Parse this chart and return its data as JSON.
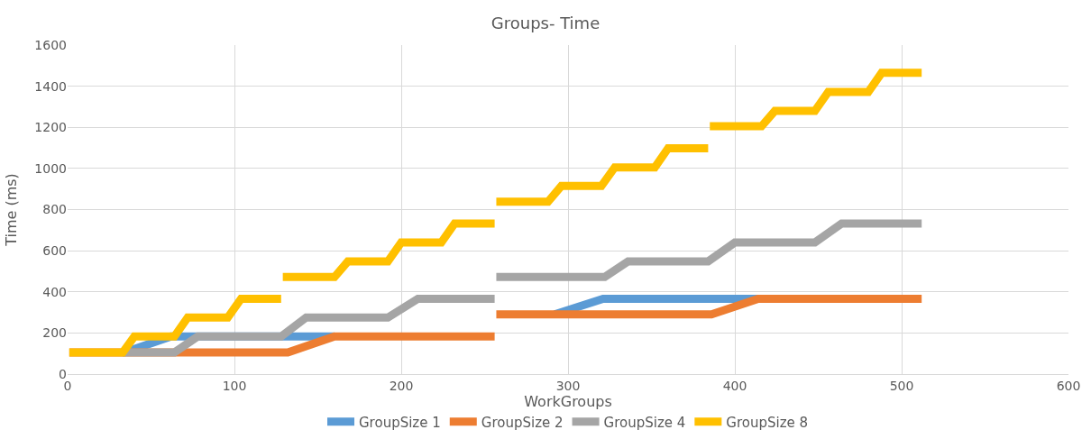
{
  "chart_data": {
    "type": "line",
    "title": "Groups- Time",
    "xlabel": "WorkGroups",
    "ylabel": "Time (ms)",
    "xlim": [
      0,
      600
    ],
    "xticks": [
      0,
      100,
      200,
      300,
      400,
      500,
      600
    ],
    "ylim": [
      0,
      1600
    ],
    "yticks": [
      0,
      200,
      400,
      600,
      800,
      1000,
      1200,
      1400,
      1600
    ],
    "grid": true,
    "legend": "bottom",
    "marker": "none",
    "line_style": "solid",
    "series": [
      {
        "name": "GroupSize 1",
        "color": "#5b9bd5",
        "x": [
          34,
          62,
          160,
          200,
          292,
          321,
          414
        ],
        "values": [
          105,
          183,
          183,
          null,
          290,
          366,
          366
        ]
      },
      {
        "name": "GroupSize 2",
        "color": "#ed7d31",
        "x": [
          1,
          132,
          160,
          256,
          256.5,
          257,
          386,
          414,
          512
        ],
        "values": [
          105,
          105,
          183,
          183,
          null,
          290,
          290,
          366,
          366
        ]
      },
      {
        "name": "GroupSize 4",
        "color": "#a5a5a5",
        "x": [
          33,
          64,
          78,
          128,
          143,
          192,
          210,
          256,
          256.5,
          257,
          322,
          336,
          384,
          400,
          448,
          464,
          512
        ],
        "values": [
          105,
          105,
          183,
          183,
          275,
          275,
          366,
          366,
          null,
          472,
          472,
          548,
          548,
          640,
          640,
          732,
          732
        ]
      },
      {
        "name": "GroupSize 8",
        "color": "#ffc000",
        "x": [
          1,
          33,
          40,
          64,
          72,
          96,
          104,
          128,
          128.5,
          129,
          160,
          168,
          192,
          200,
          224,
          232,
          256,
          256.5,
          257,
          288,
          296,
          320,
          328,
          352,
          360,
          384,
          384.5,
          385,
          416,
          424,
          448,
          456,
          480,
          488,
          512
        ],
        "values": [
          105,
          105,
          183,
          183,
          275,
          275,
          366,
          366,
          null,
          472,
          472,
          548,
          548,
          640,
          640,
          732,
          732,
          null,
          838,
          838,
          915,
          915,
          1005,
          1005,
          1098,
          1098,
          null,
          1205,
          1205,
          1280,
          1280,
          1372,
          1372,
          1465,
          1465
        ]
      }
    ]
  }
}
